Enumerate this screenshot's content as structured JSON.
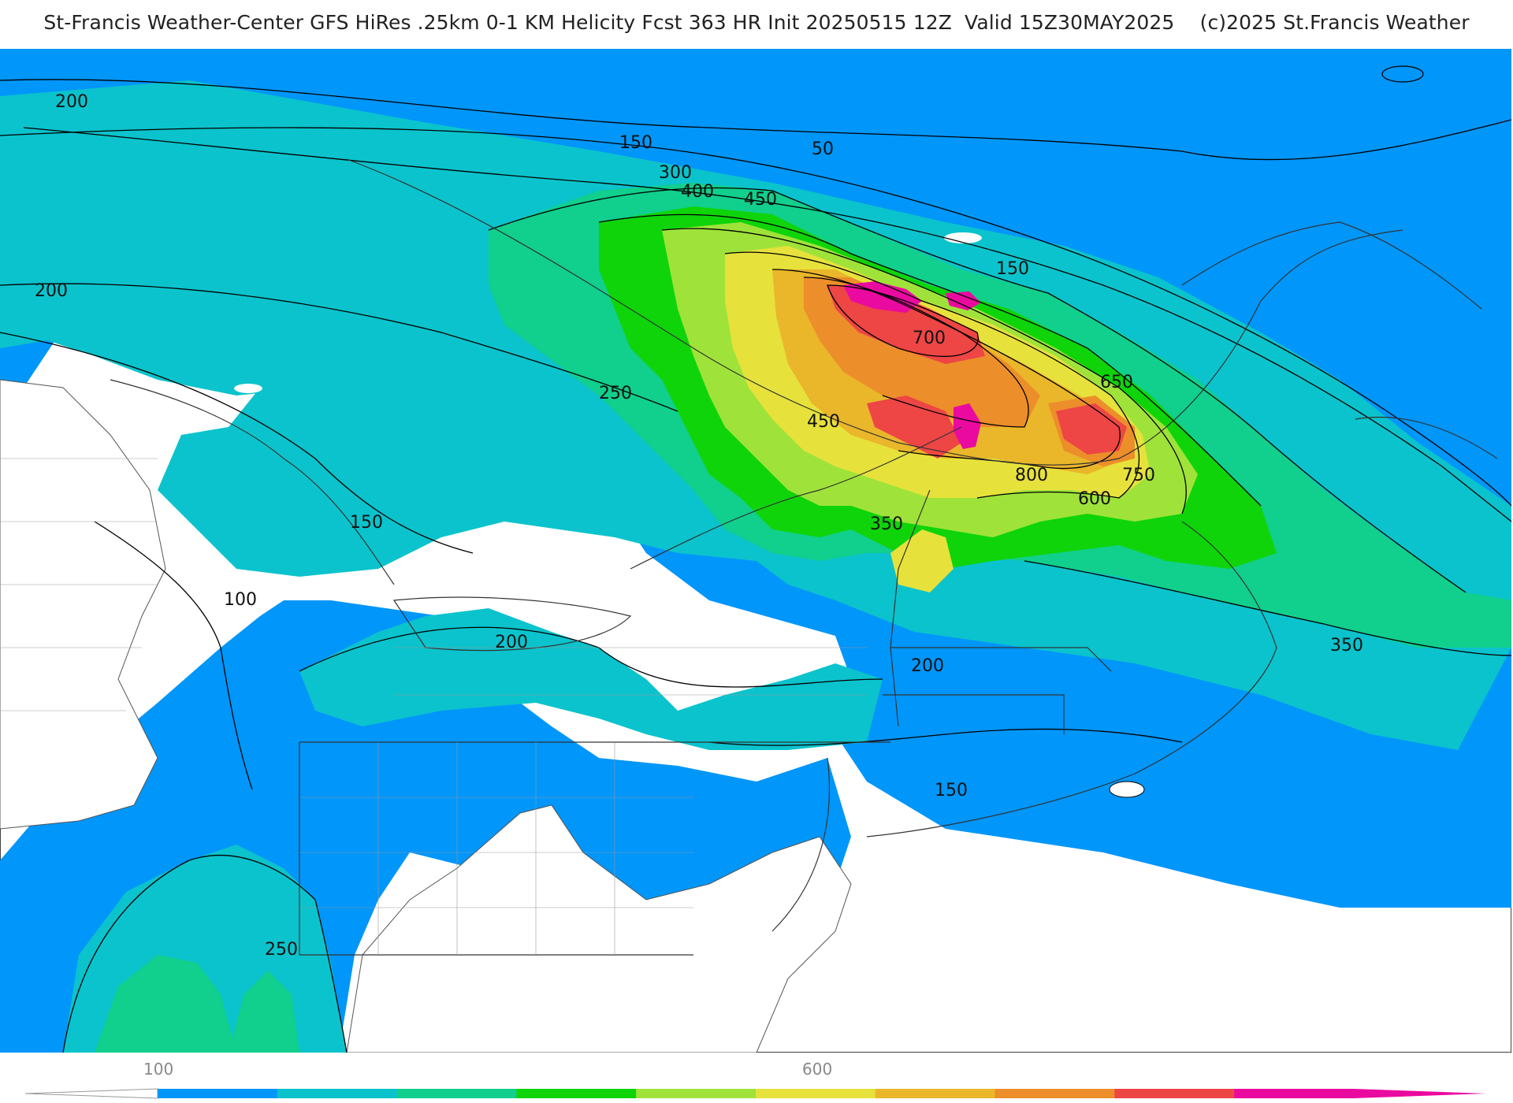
{
  "title": "St-Francis Weather-Center GFS HiRes .25km 0-1 KM Helicity Fcst 363 HR Init 20250515 12Z  Valid 15Z30MAY2025    (c)2025 St.Francis Weather",
  "colors": {
    "background": "#ffffff",
    "land_unshaded": "#ffffff",
    "level_100": "#0ea0f8",
    "level_150": "#0096fa",
    "level_200": "#0bc3cc",
    "level_300": "#11cf8c",
    "level_400": "#0fd40a",
    "level_450": "#9fe33a",
    "level_500": "#e7e13c",
    "level_600": "#eab62a",
    "level_650": "#ec8e2a",
    "level_700": "#ee4545",
    "level_800": "#ea0aa0",
    "contour": "#000000",
    "boundary": "#333333"
  },
  "contour_labels": [
    "200",
    "200",
    "150",
    "50",
    "300",
    "400",
    "450",
    "150",
    "700",
    "650",
    "250",
    "450",
    "800",
    "750",
    "600",
    "150",
    "350",
    "100",
    "200",
    "200",
    "350",
    "150",
    "250"
  ],
  "colorbar": {
    "tick_labels": [
      "100",
      "600"
    ],
    "bins": [
      "#0096fa",
      "#0bc3cc",
      "#11cf8c",
      "#0fd40a",
      "#9fe33a",
      "#e7e13c",
      "#eab62a",
      "#ec8e2a",
      "#ee4545",
      "#ea0aa0"
    ]
  }
}
